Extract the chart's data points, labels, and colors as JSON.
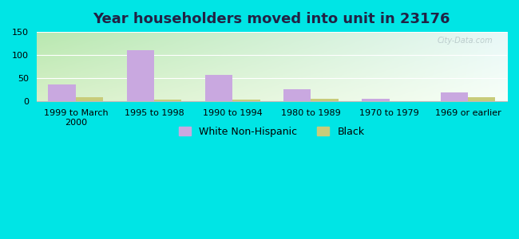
{
  "title": "Year householders moved into unit in 23176",
  "categories": [
    "1999 to March\n2000",
    "1995 to 1998",
    "1990 to 1994",
    "1980 to 1989",
    "1970 to 1979",
    "1969 or earlier"
  ],
  "white_values": [
    37,
    110,
    58,
    26,
    6,
    20
  ],
  "black_values": [
    9,
    4,
    4,
    6,
    0,
    9
  ],
  "white_color": "#c9a8e0",
  "black_color": "#c8cc7a",
  "ylim": [
    0,
    150
  ],
  "yticks": [
    0,
    50,
    100,
    150
  ],
  "bar_width": 0.35,
  "figure_bg": "#00e5e5",
  "plot_bg_topleft": "#b8e8b0",
  "plot_bg_topright": "#e8f8f8",
  "plot_bg_bottomleft": "#e0f5d0",
  "plot_bg_bottomright": "#f8fff8",
  "title_fontsize": 13,
  "tick_fontsize": 8,
  "legend_fontsize": 9,
  "watermark": "City-Data.com"
}
